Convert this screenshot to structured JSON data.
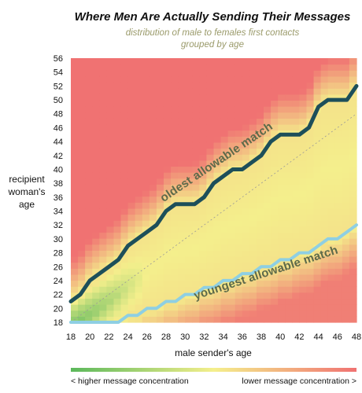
{
  "chart_data": {
    "type": "heatmap",
    "title": "Where Men Are Actually Sending Their Messages",
    "subtitle_lines": [
      "distribution of male to females first contacts",
      "grouped by age"
    ],
    "xlabel": "male sender's age",
    "ylabel_lines": [
      "recipient",
      "woman's",
      "age"
    ],
    "x_range": [
      18,
      48
    ],
    "y_range": [
      18,
      56
    ],
    "x_ticks": [
      "18",
      "20",
      "22",
      "24",
      "26",
      "28",
      "30",
      "32",
      "34",
      "36",
      "38",
      "40",
      "42",
      "44",
      "46",
      "48"
    ],
    "y_ticks": [
      "18",
      "20",
      "22",
      "24",
      "26",
      "28",
      "30",
      "32",
      "34",
      "36",
      "38",
      "40",
      "42",
      "44",
      "46",
      "48",
      "50",
      "52",
      "54",
      "56"
    ],
    "x_values": [
      18,
      48
    ],
    "y_values": [
      18,
      56
    ],
    "grid": false,
    "colors": {
      "high": "#5bb85b",
      "mid": "#f4ef8c",
      "low": "#f07272",
      "oldest_line": "#1d4f5a",
      "youngest_line": "#8ecfe3",
      "annotation_text": "#5d6a4a",
      "diagonal": "#999999"
    },
    "legend": {
      "placement": "bottom",
      "low_text": "< higher message concentration",
      "high_text": "lower message concentration >"
    },
    "series": [
      {
        "name": "oldest allowable match",
        "x": [
          18,
          19,
          20,
          21,
          22,
          23,
          24,
          25,
          26,
          27,
          28,
          29,
          30,
          31,
          32,
          33,
          34,
          35,
          36,
          37,
          38,
          39,
          40,
          41,
          42,
          43,
          44,
          45,
          46,
          47,
          48
        ],
        "y": [
          21,
          22,
          24,
          25,
          26,
          27,
          29,
          30,
          31,
          32,
          34,
          35,
          35,
          35,
          36,
          38,
          39,
          40,
          40,
          41,
          42,
          44,
          45,
          45,
          45,
          46,
          49,
          50,
          50,
          50,
          52
        ]
      },
      {
        "name": "youngest allowable match",
        "x": [
          18,
          19,
          20,
          21,
          22,
          23,
          24,
          25,
          26,
          27,
          28,
          29,
          30,
          31,
          32,
          33,
          34,
          35,
          36,
          37,
          38,
          39,
          40,
          41,
          42,
          43,
          44,
          45,
          46,
          47,
          48
        ],
        "y": [
          18,
          18,
          18,
          18,
          18,
          18,
          19,
          19,
          20,
          20,
          21,
          21,
          22,
          22,
          23,
          23,
          24,
          24,
          25,
          25,
          26,
          26,
          27,
          27,
          28,
          28,
          29,
          30,
          30,
          31,
          32
        ]
      }
    ]
  }
}
